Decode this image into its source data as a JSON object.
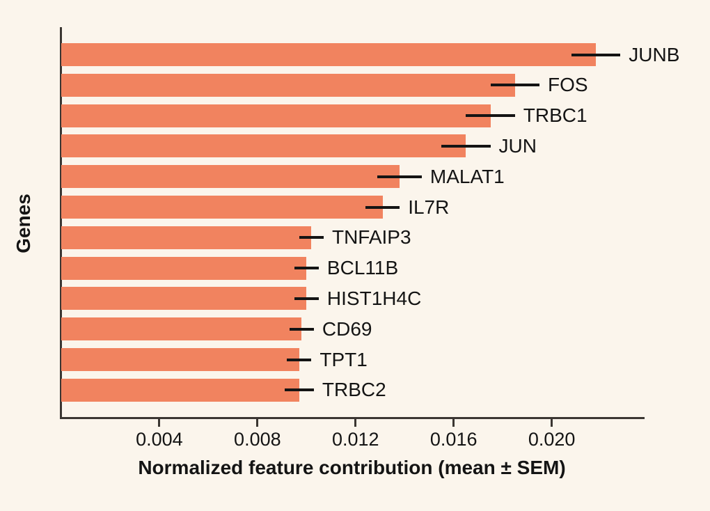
{
  "figure": {
    "background_color": "#FBF5EC",
    "text_color": "#141414"
  },
  "chart_data": {
    "type": "bar",
    "orientation": "horizontal",
    "title": "",
    "xlabel": "Normalized feature contribution (mean ± SEM)",
    "ylabel": "Genes",
    "categories": [
      "JUNB",
      "FOS",
      "TRBC1",
      "JUN",
      "MALAT1",
      "IL7R",
      "TNFAIP3",
      "BCL11B",
      "HIST1H4C",
      "CD69",
      "TPT1",
      "TRBC2"
    ],
    "values": [
      0.0218,
      0.0185,
      0.0175,
      0.0165,
      0.0138,
      0.0131,
      0.0102,
      0.01,
      0.01,
      0.0098,
      0.0097,
      0.0097
    ],
    "errors": [
      0.001,
      0.001,
      0.001,
      0.001,
      0.0009,
      0.0007,
      0.0005,
      0.0005,
      0.0005,
      0.0005,
      0.0005,
      0.0006
    ],
    "xlim": [
      0,
      0.0237
    ],
    "xticks": [
      0.004,
      0.008,
      0.012,
      0.016,
      0.02
    ],
    "xtick_labels": [
      "0.004",
      "0.008",
      "0.012",
      "0.016",
      "0.020"
    ],
    "grid": false,
    "legend": "none",
    "bar_color": "#F1835F",
    "error_bar_color": "#141414",
    "axis_color": "#3B3632"
  }
}
